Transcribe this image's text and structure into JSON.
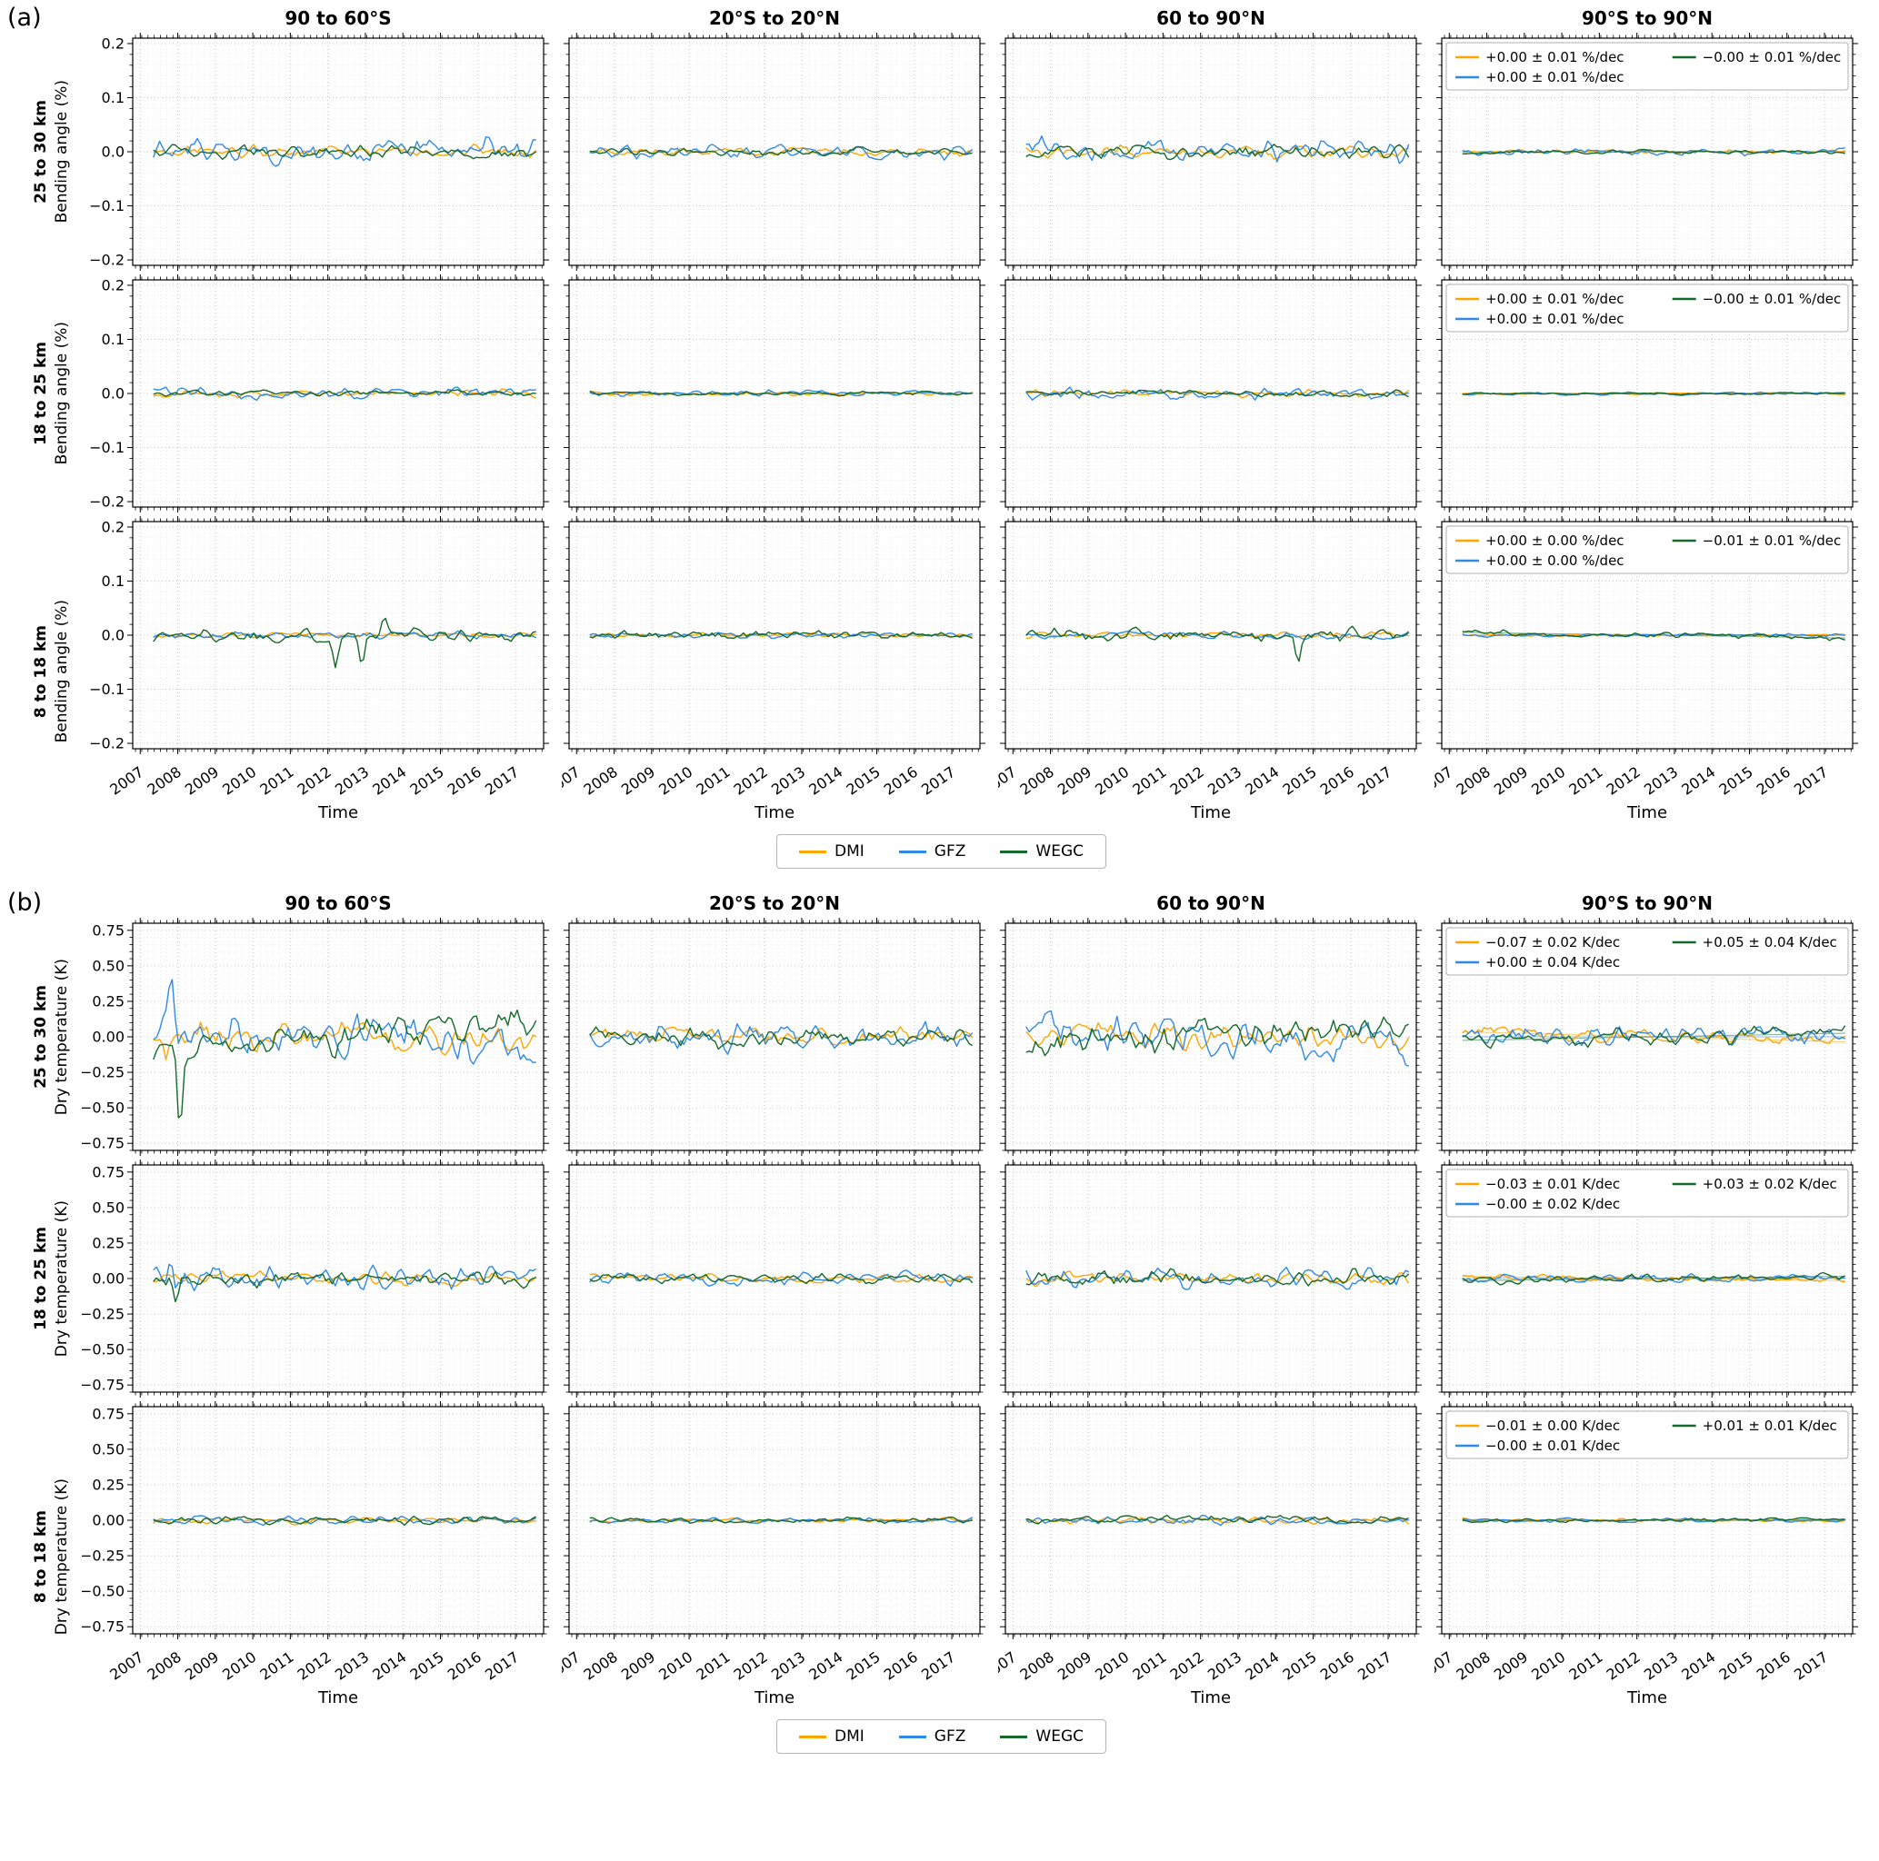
{
  "figure": {
    "panel_a_label": "(a)",
    "panel_b_label": "(b)"
  },
  "chart_data": {
    "type": "line",
    "columns": [
      "90 to 60°S",
      "20°S to 20°N",
      "60 to 90°N",
      "90°S to 90°N"
    ],
    "xlabel": "Time",
    "xticks": [
      2007,
      2008,
      2009,
      2010,
      2011,
      2012,
      2013,
      2014,
      2015,
      2016,
      2017
    ],
    "x_range": [
      2006.8,
      2017.75
    ],
    "x_data_range": [
      2007.35,
      2017.55
    ],
    "xminor": 0.16667,
    "series": [
      {
        "name": "DMI",
        "color": "#ffa500"
      },
      {
        "name": "GFZ",
        "color": "#2e8ae6"
      },
      {
        "name": "WEGC",
        "color": "#15692a"
      }
    ],
    "panels": [
      {
        "label": "(a)",
        "ylabel": "Bending angle (%)",
        "unit": "%/dec",
        "ylim": [
          -0.21,
          0.21
        ],
        "yticks": [
          0.2,
          0.1,
          0.0,
          -0.1,
          -0.2
        ],
        "ydecimals": 1,
        "yminor": 0.02,
        "rows": [
          {
            "label": "25 to 30 km",
            "trend_legend": [
              "+0.00 ± 0.01 %/dec",
              "+0.00 ± 0.01 %/dec",
              "−0.00 ± 0.01 %/dec"
            ],
            "cells": [
              {
                "amp": [
                  0.012,
                  0.025,
                  0.013
                ]
              },
              {
                "amp": [
                  0.008,
                  0.013,
                  0.008
                ]
              },
              {
                "amp": [
                  0.014,
                  0.024,
                  0.014
                ]
              },
              {
                "amp": [
                  0.004,
                  0.007,
                  0.004
                ],
                "trend": [
                  0,
                  0,
                  0
                ],
                "fit": true
              }
            ]
          },
          {
            "label": "18 to 25 km",
            "trend_legend": [
              "+0.00 ± 0.01 %/dec",
              "+0.00 ± 0.01 %/dec",
              "−0.00 ± 0.01 %/dec"
            ],
            "cells": [
              {
                "amp": [
                  0.007,
                  0.012,
                  0.006
                ]
              },
              {
                "amp": [
                  0.004,
                  0.006,
                  0.004
                ]
              },
              {
                "amp": [
                  0.007,
                  0.011,
                  0.006
                ]
              },
              {
                "amp": [
                  0.002,
                  0.003,
                  0.002
                ],
                "trend": [
                  0,
                  0,
                  0
                ],
                "fit": true
              }
            ]
          },
          {
            "label": "8 to 18 km",
            "trend_legend": [
              "+0.00 ± 0.00 %/dec",
              "+0.00 ± 0.00 %/dec",
              "−0.01 ± 0.01 %/dec"
            ],
            "cells": [
              {
                "amp": [
                  0.005,
                  0.007,
                  0.014
                ],
                "spikes": [
                  [
                    2,
                    2012.2,
                    -0.05
                  ],
                  [
                    2,
                    2012.9,
                    -0.045
                  ],
                  [
                    2,
                    2013.5,
                    0.03
                  ]
                ]
              },
              {
                "amp": [
                  0.004,
                  0.005,
                  0.008
                ]
              },
              {
                "amp": [
                  0.006,
                  0.007,
                  0.013
                ],
                "spikes": [
                  [
                    2,
                    2014.6,
                    -0.05
                  ]
                ]
              },
              {
                "amp": [
                  0.0025,
                  0.003,
                  0.006
                ],
                "trend": [
                  0,
                  0,
                  -0.01
                ],
                "fit": true
              }
            ]
          }
        ]
      },
      {
        "label": "(b)",
        "ylabel": "Dry temperature (K)",
        "unit": "K/dec",
        "ylim": [
          -0.8,
          0.8
        ],
        "yticks": [
          0.75,
          0.5,
          0.25,
          0.0,
          -0.25,
          -0.5,
          -0.75
        ],
        "ydecimals": 2,
        "yminor": 0.05,
        "rows": [
          {
            "label": "25 to 30 km",
            "trend_legend": [
              "−0.07 ± 0.02 K/dec",
              "+0.00 ± 0.04 K/dec",
              "+0.05 ± 0.04 K/dec"
            ],
            "cells": [
              {
                "amp": [
                  0.1,
                  0.16,
                  0.12
                ],
                "trend": [
                  -0.05,
                  -0.1,
                  0.2
                ],
                "spikes": [
                  [
                    1,
                    2007.85,
                    0.3
                  ],
                  [
                    2,
                    2008.05,
                    -0.55
                  ],
                  [
                    0,
                    2007.7,
                    -0.18
                  ]
                ]
              },
              {
                "amp": [
                  0.07,
                  0.1,
                  0.07
                ]
              },
              {
                "amp": [
                  0.1,
                  0.15,
                  0.12
                ],
                "trend": [
                  -0.05,
                  -0.08,
                  0.1
                ]
              },
              {
                "amp": [
                  0.05,
                  0.08,
                  0.06
                ],
                "trend": [
                  -0.07,
                  0.0,
                  0.05
                ],
                "fit": true
              }
            ]
          },
          {
            "label": "18 to 25 km",
            "trend_legend": [
              "−0.03 ± 0.01 K/dec",
              "−0.00 ± 0.02 K/dec",
              "+0.03 ± 0.02 K/dec"
            ],
            "cells": [
              {
                "amp": [
                  0.05,
                  0.09,
                  0.06
                ],
                "spikes": [
                  [
                    1,
                    2007.8,
                    0.16
                  ],
                  [
                    2,
                    2007.95,
                    -0.2
                  ]
                ]
              },
              {
                "amp": [
                  0.03,
                  0.05,
                  0.035
                ]
              },
              {
                "amp": [
                  0.05,
                  0.07,
                  0.06
                ]
              },
              {
                "amp": [
                  0.02,
                  0.03,
                  0.03
                ],
                "trend": [
                  -0.03,
                  0.0,
                  0.03
                ],
                "fit": true
              }
            ]
          },
          {
            "label": "8 to 18 km",
            "trend_legend": [
              "−0.01 ± 0.00 K/dec",
              "−0.00 ± 0.01 K/dec",
              "+0.01 ± 0.01 K/dec"
            ],
            "cells": [
              {
                "amp": [
                  0.025,
                  0.03,
                  0.03
                ]
              },
              {
                "amp": [
                  0.015,
                  0.02,
                  0.02
                ]
              },
              {
                "amp": [
                  0.025,
                  0.03,
                  0.03
                ]
              },
              {
                "amp": [
                  0.01,
                  0.015,
                  0.015
                ],
                "trend": [
                  -0.01,
                  0.0,
                  0.01
                ],
                "fit": true
              }
            ]
          }
        ]
      }
    ]
  }
}
